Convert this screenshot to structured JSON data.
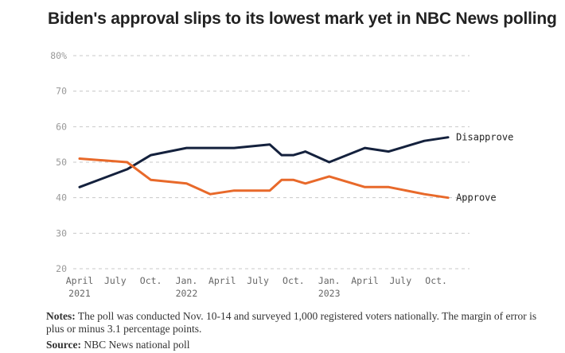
{
  "title": "Biden's approval slips to its lowest mark yet in NBC News polling",
  "notes": {
    "label": "Notes:",
    "text": "The poll was conducted Nov. 10-14 and surveyed 1,000 registered voters nationally. The margin of error is plus or minus 3.1 percentage points."
  },
  "source": {
    "label": "Source:",
    "text": "NBC News national poll"
  },
  "chart_data": {
    "type": "line",
    "title": "Biden's approval slips to its lowest mark yet in NBC News polling",
    "xlabel": "",
    "ylabel": "",
    "ylim": [
      20,
      80
    ],
    "xlim": [
      0,
      32
    ],
    "grid": true,
    "y_ticks": [
      20,
      30,
      40,
      50,
      60,
      70,
      80
    ],
    "y_tick_labels": [
      "20",
      "30",
      "40",
      "50",
      "60",
      "70",
      "80%"
    ],
    "x_ticks": [
      {
        "x": 0,
        "label": "April",
        "year": "2021"
      },
      {
        "x": 3,
        "label": "July",
        "year": ""
      },
      {
        "x": 6,
        "label": "Oct.",
        "year": ""
      },
      {
        "x": 9,
        "label": "Jan.",
        "year": "2022"
      },
      {
        "x": 12,
        "label": "April",
        "year": ""
      },
      {
        "x": 15,
        "label": "July",
        "year": ""
      },
      {
        "x": 18,
        "label": "Oct.",
        "year": ""
      },
      {
        "x": 21,
        "label": "Jan.",
        "year": "2023"
      },
      {
        "x": 24,
        "label": "April",
        "year": ""
      },
      {
        "x": 27,
        "label": "July",
        "year": ""
      },
      {
        "x": 30,
        "label": "Oct.",
        "year": ""
      }
    ],
    "series": [
      {
        "name": "Disapprove",
        "color": "#14213d",
        "points": [
          [
            0,
            43
          ],
          [
            4,
            48
          ],
          [
            6,
            52
          ],
          [
            9,
            54
          ],
          [
            13,
            54
          ],
          [
            16,
            55
          ],
          [
            17,
            52
          ],
          [
            18,
            52
          ],
          [
            19,
            53
          ],
          [
            21,
            50
          ],
          [
            24,
            54
          ],
          [
            26,
            53
          ],
          [
            29,
            56
          ],
          [
            31,
            57
          ]
        ]
      },
      {
        "name": "Approve",
        "color": "#e8692a",
        "points": [
          [
            0,
            51
          ],
          [
            4,
            50
          ],
          [
            6,
            45
          ],
          [
            9,
            44
          ],
          [
            11,
            41
          ],
          [
            13,
            42
          ],
          [
            16,
            42
          ],
          [
            17,
            45
          ],
          [
            18,
            45
          ],
          [
            19,
            44
          ],
          [
            21,
            46
          ],
          [
            24,
            43
          ],
          [
            26,
            43
          ],
          [
            29,
            41
          ],
          [
            31,
            40
          ]
        ]
      }
    ]
  }
}
